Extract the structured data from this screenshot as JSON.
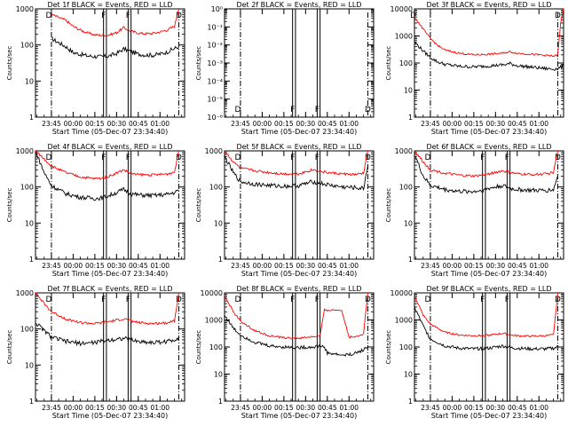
{
  "figure": {
    "xlabel": "Start Time (05-Dec-07 23:34:40)",
    "ylabel": "Counts/sec",
    "x_ticks": [
      "23:45",
      "00:00",
      "00:15",
      "00:30",
      "00:45",
      "01:00"
    ],
    "colors": {
      "events": "#000000",
      "lld": "#ff0000"
    }
  },
  "chart_data": [
    {
      "type": "line",
      "title": "Det 1f BLACK = Events, RED = LLD",
      "yscale": "log",
      "ylim": [
        1,
        1000
      ],
      "y_ticks": [
        "1",
        "10",
        "100",
        "1000"
      ],
      "x_minutes": [
        0,
        10,
        15,
        20,
        25,
        30,
        35,
        40,
        45,
        50,
        55,
        60,
        65,
        70,
        75,
        80,
        85,
        88
      ],
      "series": [
        {
          "name": "Events",
          "color": "#000000",
          "values": [
            150,
            90,
            62,
            55,
            50,
            48,
            47,
            50,
            58,
            78,
            65,
            56,
            53,
            52,
            56,
            64,
            80,
            90
          ]
        },
        {
          "name": "LLD",
          "color": "#ff0000",
          "values": [
            700,
            480,
            330,
            260,
            215,
            190,
            185,
            190,
            220,
            300,
            240,
            215,
            205,
            210,
            230,
            260,
            330,
            1000
          ]
        }
      ],
      "markers": [
        "D",
        "F",
        "F",
        "D"
      ]
    },
    {
      "type": "line",
      "title": "Det 2f BLACK = Events, RED = LLD",
      "yscale": "log",
      "ylim": [
        1e-06,
        1
      ],
      "y_ticks": [
        "10⁻⁶",
        "10⁻⁵",
        "10⁻⁴",
        "10⁻³",
        "10⁻²",
        "10⁻¹",
        "10⁰"
      ],
      "x_minutes": [],
      "series": [],
      "markers": [
        "D",
        "F",
        "F",
        "D"
      ]
    },
    {
      "type": "line",
      "title": "Det 3f BLACK = Events, RED = LLD",
      "yscale": "log",
      "ylim": [
        1,
        10000
      ],
      "y_ticks": [
        "1",
        "10",
        "100",
        "1000",
        "10000"
      ],
      "x_minutes": [
        -11,
        -5,
        0,
        5,
        10,
        20,
        30,
        40,
        50,
        55,
        60,
        70,
        75,
        80,
        85,
        88,
        90,
        92
      ],
      "series": [
        {
          "name": "Events",
          "color": "#000000",
          "values": [
            600,
            280,
            160,
            110,
            90,
            75,
            72,
            78,
            85,
            95,
            80,
            70,
            66,
            62,
            60,
            62,
            70,
            80
          ]
        },
        {
          "name": "LLD",
          "color": "#ff0000",
          "values": [
            5000,
            1800,
            800,
            450,
            300,
            230,
            200,
            210,
            230,
            260,
            230,
            210,
            200,
            190,
            180,
            200,
            3000,
            10000
          ]
        }
      ],
      "markers": [
        "D",
        "D"
      ]
    },
    {
      "type": "line",
      "title": "Det 4f BLACK = Events, RED = LLD",
      "yscale": "log",
      "ylim": [
        1,
        1000
      ],
      "y_ticks": [
        "1",
        "10",
        "100",
        "1000"
      ],
      "x_minutes": [
        -11,
        -5,
        0,
        10,
        20,
        30,
        35,
        40,
        50,
        55,
        60,
        70,
        80,
        85,
        88
      ],
      "series": [
        {
          "name": "Events",
          "color": "#000000",
          "values": [
            1000,
            250,
            110,
            65,
            52,
            48,
            50,
            58,
            85,
            65,
            60,
            58,
            62,
            70,
            80
          ]
        },
        {
          "name": "LLD",
          "color": "#ff0000",
          "values": [
            1000,
            600,
            380,
            250,
            190,
            170,
            175,
            200,
            300,
            230,
            220,
            215,
            230,
            260,
            1000
          ]
        }
      ],
      "markers": [
        "D",
        "F",
        "F",
        "D"
      ]
    },
    {
      "type": "line",
      "title": "Det 5f BLACK = Events, RED = LLD",
      "yscale": "log",
      "ylim": [
        1,
        1000
      ],
      "y_ticks": [
        "1",
        "10",
        "100",
        "1000"
      ],
      "x_minutes": [
        -11,
        -5,
        0,
        10,
        20,
        30,
        40,
        50,
        60,
        70,
        80,
        85,
        88
      ],
      "series": [
        {
          "name": "Events",
          "color": "#000000",
          "values": [
            700,
            250,
            140,
            120,
            110,
            105,
            108,
            140,
            115,
            100,
            95,
            90,
            400
          ]
        },
        {
          "name": "LLD",
          "color": "#ff0000",
          "values": [
            1000,
            500,
            330,
            280,
            250,
            230,
            230,
            300,
            250,
            230,
            220,
            240,
            1000
          ]
        }
      ],
      "markers": [
        "D",
        "F",
        "F",
        "D"
      ]
    },
    {
      "type": "line",
      "title": "Det 6f BLACK = Events, RED = LLD",
      "yscale": "log",
      "ylim": [
        1,
        1000
      ],
      "y_ticks": [
        "1",
        "10",
        "100",
        "1000"
      ],
      "x_minutes": [
        -11,
        -5,
        0,
        10,
        20,
        30,
        35,
        40,
        50,
        55,
        60,
        70,
        80,
        85,
        88
      ],
      "series": [
        {
          "name": "Events",
          "color": "#000000",
          "values": [
            800,
            200,
            110,
            85,
            75,
            75,
            80,
            90,
            110,
            90,
            85,
            80,
            80,
            85,
            200
          ]
        },
        {
          "name": "LLD",
          "color": "#ff0000",
          "values": [
            1000,
            500,
            300,
            240,
            210,
            200,
            210,
            230,
            280,
            250,
            230,
            220,
            230,
            250,
            1000
          ]
        }
      ],
      "markers": [
        "D",
        "F",
        "F",
        "D"
      ]
    },
    {
      "type": "line",
      "title": "Det 7f BLACK = Events, RED = LLD",
      "yscale": "log",
      "ylim": [
        1,
        1000
      ],
      "y_ticks": [
        "1",
        "10",
        "100",
        "1000"
      ],
      "x_minutes": [
        -11,
        -5,
        0,
        10,
        20,
        30,
        40,
        50,
        60,
        70,
        80,
        85,
        88
      ],
      "series": [
        {
          "name": "Events",
          "color": "#000000",
          "values": [
            150,
            90,
            60,
            45,
            40,
            42,
            50,
            55,
            45,
            42,
            45,
            50,
            60
          ]
        },
        {
          "name": "LLD",
          "color": "#ff0000",
          "values": [
            1000,
            500,
            300,
            190,
            150,
            140,
            160,
            190,
            150,
            140,
            150,
            170,
            1000
          ]
        }
      ],
      "markers": [
        "D",
        "F",
        "F",
        "D"
      ]
    },
    {
      "type": "line",
      "title": "Det 8f BLACK = Events, RED = LLD",
      "yscale": "log",
      "ylim": [
        1,
        10000
      ],
      "y_ticks": [
        "1",
        "10",
        "100",
        "1000",
        "10000"
      ],
      "x_minutes": [
        -11,
        -5,
        0,
        10,
        20,
        30,
        40,
        50,
        55,
        58,
        60,
        65,
        70,
        75,
        80,
        85,
        88
      ],
      "series": [
        {
          "name": "Events",
          "color": "#000000",
          "values": [
            1500,
            500,
            280,
            150,
            110,
            100,
            95,
            100,
            110,
            100,
            60,
            55,
            50,
            52,
            60,
            80,
            100
          ]
        },
        {
          "name": "LLD",
          "color": "#ff0000",
          "values": [
            8000,
            2000,
            900,
            400,
            260,
            220,
            210,
            240,
            260,
            2300,
            2300,
            2300,
            2300,
            230,
            250,
            300,
            10000
          ]
        }
      ],
      "markers": [
        "D",
        "F",
        "F",
        "D"
      ]
    },
    {
      "type": "line",
      "title": "Det 9f BLACK = Events, RED = LLD",
      "yscale": "log",
      "ylim": [
        1,
        10000
      ],
      "y_ticks": [
        "1",
        "10",
        "100",
        "1000",
        "10000"
      ],
      "x_minutes": [
        -11,
        -5,
        0,
        10,
        20,
        30,
        40,
        50,
        55,
        60,
        70,
        80,
        85,
        88
      ],
      "series": [
        {
          "name": "Events",
          "color": "#000000",
          "values": [
            3000,
            600,
            200,
            110,
            90,
            85,
            90,
            110,
            95,
            90,
            85,
            85,
            90,
            100
          ]
        },
        {
          "name": "LLD",
          "color": "#ff0000",
          "values": [
            8000,
            1500,
            700,
            350,
            280,
            260,
            270,
            320,
            280,
            260,
            250,
            260,
            280,
            10000
          ]
        }
      ],
      "markers": [
        "D",
        "F",
        "F",
        "D"
      ]
    }
  ]
}
